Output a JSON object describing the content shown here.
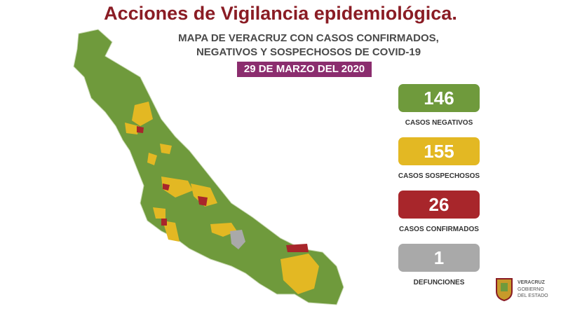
{
  "header": {
    "title": "Acciones de Vigilancia epidemiológica.",
    "subtitle": [
      "MAPA DE VERACRUZ CON CASOS CONFIRMADOS,",
      "NEGATIVOS Y SOSPECHOSOS DE COVID-19"
    ],
    "date": "29 DE MARZO DEL 2020"
  },
  "stats": [
    {
      "value": 146,
      "label": "CASOS NEGATIVOS",
      "color": "#6f9a3c"
    },
    {
      "value": 155,
      "label": "CASOS SOSPECHOSOS",
      "color": "#e3b823"
    },
    {
      "value": 26,
      "label": "CASOS CONFIRMADOS",
      "color": "#a8262b"
    },
    {
      "value": 1,
      "label": "DEFUNCIONES",
      "color": "#a9a9a9"
    }
  ],
  "logo": {
    "lines": [
      "VERACRUZ",
      "GOBIERNO",
      "DEL ESTADO"
    ]
  }
}
